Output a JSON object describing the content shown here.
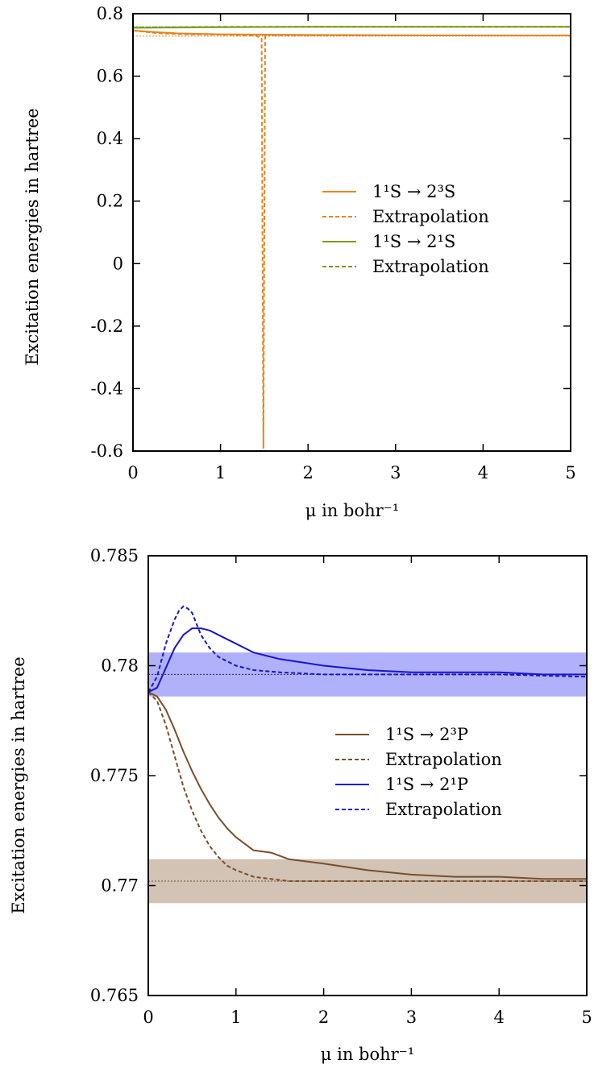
{
  "chart_data": [
    {
      "type": "line",
      "title": "",
      "xlabel": "μ in bohr⁻¹",
      "ylabel": "Excitation energies in hartree",
      "xlim": [
        0,
        5
      ],
      "ylim": [
        -0.6,
        0.8
      ],
      "x_ticks": [
        "0",
        "1",
        "2",
        "3",
        "4",
        "5"
      ],
      "y_ticks": [
        "-0.6",
        "-0.4",
        "-0.2",
        "0",
        "0.2",
        "0.4",
        "0.6",
        "0.8"
      ],
      "legend_position": "center-right",
      "series": [
        {
          "name": "1¹S → 2³S",
          "color": "#e8821e",
          "style": "solid",
          "x": [
            0,
            0.25,
            0.5,
            1.0,
            1.5,
            2.0,
            3.0,
            4.0,
            5.0
          ],
          "y": [
            0.746,
            0.741,
            0.737,
            0.734,
            0.733,
            0.732,
            0.731,
            0.7305,
            0.7305
          ]
        },
        {
          "name": "Extrapolation",
          "color": "#e8821e",
          "style": "dashed",
          "x": [
            0,
            0.3,
            0.6,
            1.0,
            1.4,
            1.47,
            1.49,
            1.49,
            1.51,
            1.52,
            1.53,
            1.55,
            2.0,
            3.0,
            4.0,
            5.0
          ],
          "y": [
            0.746,
            0.737,
            0.734,
            0.733,
            0.73,
            0.72,
            -0.59,
            -0.58,
            0.73,
            0.735,
            0.733,
            0.731,
            0.7305,
            0.7305,
            0.7305,
            0.7305
          ]
        },
        {
          "name": "1¹S → 2¹S",
          "color": "#7a9a1a",
          "style": "solid",
          "x": [
            0,
            1,
            2,
            3,
            4,
            5
          ],
          "y": [
            0.755,
            0.757,
            0.758,
            0.758,
            0.758,
            0.758
          ]
        },
        {
          "name": "Extrapolation",
          "color": "#7a9a1a",
          "style": "dashed",
          "x": [
            0,
            1,
            2,
            3,
            4,
            5
          ],
          "y": [
            0.756,
            0.758,
            0.758,
            0.758,
            0.758,
            0.758
          ]
        }
      ],
      "reference_lines": [
        {
          "y": 0.728,
          "color": "#e8821e"
        },
        {
          "y": 0.758,
          "color": "#7a9a1a"
        }
      ]
    },
    {
      "type": "line",
      "title": "",
      "xlabel": "μ in bohr⁻¹",
      "ylabel": "Excitation energies in hartree",
      "xlim": [
        0,
        5
      ],
      "ylim": [
        0.765,
        0.785
      ],
      "x_ticks": [
        "0",
        "1",
        "2",
        "3",
        "4",
        "5"
      ],
      "y_ticks": [
        "0.765",
        "0.77",
        "0.775",
        "0.78",
        "0.785"
      ],
      "legend_position": "center-right",
      "bands": [
        {
          "y0": 0.7786,
          "y1": 0.7806,
          "color": "#b1b0fb"
        },
        {
          "y0": 0.7692,
          "y1": 0.7712,
          "color": "#d2c3b4"
        }
      ],
      "reference_lines": [
        {
          "y": 0.7796,
          "color": "#1a14cc"
        },
        {
          "y": 0.7702,
          "color": "#7a4e2a"
        }
      ],
      "series": [
        {
          "name": "1¹S → 2³P",
          "color": "#7a4e2a",
          "style": "solid",
          "x": [
            0,
            0.1,
            0.2,
            0.3,
            0.4,
            0.5,
            0.6,
            0.7,
            0.8,
            0.9,
            1.0,
            1.2,
            1.4,
            1.6,
            1.8,
            2.0,
            2.5,
            3.0,
            3.5,
            4.0,
            4.5,
            5.0
          ],
          "y": [
            0.7788,
            0.7786,
            0.778,
            0.7771,
            0.7761,
            0.7752,
            0.7744,
            0.7737,
            0.7731,
            0.7726,
            0.7722,
            0.7716,
            0.7715,
            0.7712,
            0.7711,
            0.771,
            0.7707,
            0.7705,
            0.7704,
            0.7704,
            0.7703,
            0.7703
          ]
        },
        {
          "name": "Extrapolation",
          "color": "#7a4e2a",
          "style": "dashed",
          "x": [
            0,
            0.1,
            0.2,
            0.3,
            0.4,
            0.5,
            0.6,
            0.7,
            0.8,
            0.9,
            1.0,
            1.2,
            1.4,
            1.6,
            1.8,
            2.0,
            2.5,
            3.0,
            4.0,
            5.0
          ],
          "y": [
            0.7788,
            0.7784,
            0.7773,
            0.7759,
            0.7745,
            0.7734,
            0.7725,
            0.7718,
            0.7713,
            0.7709,
            0.7707,
            0.7704,
            0.7703,
            0.7702,
            0.7702,
            0.7702,
            0.7702,
            0.7702,
            0.7702,
            0.7702
          ]
        },
        {
          "name": "1¹S → 2¹P",
          "color": "#1a14cc",
          "style": "solid",
          "x": [
            0,
            0.1,
            0.2,
            0.3,
            0.4,
            0.5,
            0.6,
            0.7,
            0.8,
            1.0,
            1.2,
            1.5,
            2.0,
            2.5,
            3.0,
            3.5,
            4.0,
            4.5,
            5.0
          ],
          "y": [
            0.7788,
            0.779,
            0.7799,
            0.7808,
            0.7814,
            0.7817,
            0.7817,
            0.7816,
            0.7814,
            0.781,
            0.7806,
            0.7803,
            0.78,
            0.7798,
            0.7797,
            0.7797,
            0.7797,
            0.7796,
            0.7796
          ]
        },
        {
          "name": "Extrapolation",
          "color": "#1a14cc",
          "style": "dashed",
          "x": [
            0,
            0.1,
            0.2,
            0.3,
            0.35,
            0.4,
            0.45,
            0.5,
            0.55,
            0.6,
            0.7,
            0.8,
            1.0,
            1.2,
            1.5,
            2.0,
            3.0,
            4.0,
            5.0
          ],
          "y": [
            0.7788,
            0.7795,
            0.781,
            0.7821,
            0.7825,
            0.7827,
            0.7826,
            0.7824,
            0.7819,
            0.7814,
            0.7808,
            0.7804,
            0.78,
            0.7798,
            0.7797,
            0.7796,
            0.7796,
            0.7796,
            0.7795
          ]
        }
      ]
    }
  ]
}
